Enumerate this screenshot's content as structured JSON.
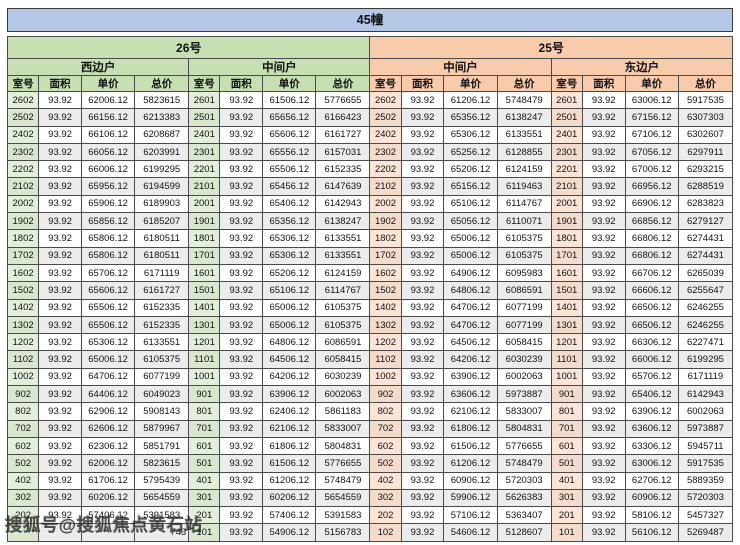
{
  "title": "45幢",
  "watermark": "搜狐号@搜狐焦点黄石站",
  "table": {
    "columns": [
      "室号",
      "面积",
      "单价",
      "总价"
    ],
    "col_widths_pct": [
      4.3,
      5.9,
      7.35,
      7.45
    ],
    "groups": [
      {
        "label": "26号",
        "theme": "green",
        "units": [
          "西边户",
          "中间户"
        ]
      },
      {
        "label": "25号",
        "theme": "orange",
        "units": [
          "中间户",
          "东边户"
        ]
      }
    ],
    "colors": {
      "title_bg": "#b4c7e7",
      "group_green": "#c6e0b4",
      "group_orange": "#f8cbad",
      "room_green": "#e2efda",
      "room_orange": "#fce4d6",
      "stripe": "#ececec",
      "border": "#4a4a4a"
    },
    "rows": [
      [
        "2602",
        "93.92",
        "62006.12",
        "5823615",
        "2601",
        "93.92",
        "61506.12",
        "5776655",
        "2602",
        "93.92",
        "61206.12",
        "5748479",
        "2601",
        "93.92",
        "63006.12",
        "5917535"
      ],
      [
        "2502",
        "93.92",
        "66156.12",
        "6213383",
        "2501",
        "93.92",
        "65656.12",
        "6166423",
        "2502",
        "93.92",
        "65356.12",
        "6138247",
        "2501",
        "93.92",
        "67156.12",
        "6307303"
      ],
      [
        "2402",
        "93.92",
        "66106.12",
        "6208687",
        "2401",
        "93.92",
        "65606.12",
        "6161727",
        "2402",
        "93.92",
        "65306.12",
        "6133551",
        "2401",
        "93.92",
        "67106.12",
        "6302607"
      ],
      [
        "2302",
        "93.92",
        "66056.12",
        "6203991",
        "2301",
        "93.92",
        "65556.12",
        "6157031",
        "2302",
        "93.92",
        "65256.12",
        "6128855",
        "2301",
        "93.92",
        "67056.12",
        "6297911"
      ],
      [
        "2202",
        "93.92",
        "66006.12",
        "6199295",
        "2201",
        "93.92",
        "65506.12",
        "6152335",
        "2202",
        "93.92",
        "65206.12",
        "6124159",
        "2201",
        "93.92",
        "67006.12",
        "6293215"
      ],
      [
        "2102",
        "93.92",
        "65956.12",
        "6194599",
        "2101",
        "93.92",
        "65456.12",
        "6147639",
        "2102",
        "93.92",
        "65156.12",
        "6119463",
        "2101",
        "93.92",
        "66956.12",
        "6288519"
      ],
      [
        "2002",
        "93.92",
        "65906.12",
        "6189903",
        "2001",
        "93.92",
        "65406.12",
        "6142943",
        "2002",
        "93.92",
        "65106.12",
        "6114767",
        "2001",
        "93.92",
        "66906.12",
        "6283823"
      ],
      [
        "1902",
        "93.92",
        "65856.12",
        "6185207",
        "1901",
        "93.92",
        "65356.12",
        "6138247",
        "1902",
        "93.92",
        "65056.12",
        "6110071",
        "1901",
        "93.92",
        "66856.12",
        "6279127"
      ],
      [
        "1802",
        "93.92",
        "65806.12",
        "6180511",
        "1801",
        "93.92",
        "65306.12",
        "6133551",
        "1802",
        "93.92",
        "65006.12",
        "6105375",
        "1801",
        "93.92",
        "66806.12",
        "6274431"
      ],
      [
        "1702",
        "93.92",
        "65806.12",
        "6180511",
        "1701",
        "93.92",
        "65306.12",
        "6133551",
        "1702",
        "93.92",
        "65006.12",
        "6105375",
        "1701",
        "93.92",
        "66806.12",
        "6274431"
      ],
      [
        "1602",
        "93.92",
        "65706.12",
        "6171119",
        "1601",
        "93.92",
        "65206.12",
        "6124159",
        "1602",
        "93.92",
        "64906.12",
        "6095983",
        "1601",
        "93.92",
        "66706.12",
        "6265039"
      ],
      [
        "1502",
        "93.92",
        "65606.12",
        "6161727",
        "1501",
        "93.92",
        "65106.12",
        "6114767",
        "1502",
        "93.92",
        "64806.12",
        "6086591",
        "1501",
        "93.92",
        "66606.12",
        "6255647"
      ],
      [
        "1402",
        "93.92",
        "65506.12",
        "6152335",
        "1401",
        "93.92",
        "65006.12",
        "6105375",
        "1402",
        "93.92",
        "64706.12",
        "6077199",
        "1401",
        "93.92",
        "66506.12",
        "6246255"
      ],
      [
        "1302",
        "93.92",
        "65506.12",
        "6152335",
        "1301",
        "93.92",
        "65006.12",
        "6105375",
        "1302",
        "93.92",
        "64706.12",
        "6077199",
        "1301",
        "93.92",
        "66506.12",
        "6246255"
      ],
      [
        "1202",
        "93.92",
        "65306.12",
        "6133551",
        "1201",
        "93.92",
        "64806.12",
        "6086591",
        "1202",
        "93.92",
        "64506.12",
        "6058415",
        "1201",
        "93.92",
        "66306.12",
        "6227471"
      ],
      [
        "1102",
        "93.92",
        "65006.12",
        "6105375",
        "1101",
        "93.92",
        "64506.12",
        "6058415",
        "1102",
        "93.92",
        "64206.12",
        "6030239",
        "1101",
        "93.92",
        "66006.12",
        "6199295"
      ],
      [
        "1002",
        "93.92",
        "64706.12",
        "6077199",
        "1001",
        "93.92",
        "64206.12",
        "6030239",
        "1002",
        "93.92",
        "63906.12",
        "6002063",
        "1001",
        "93.92",
        "65706.12",
        "6171119"
      ],
      [
        "902",
        "93.92",
        "64406.12",
        "6049023",
        "901",
        "93.92",
        "63906.12",
        "6002063",
        "902",
        "93.92",
        "63606.12",
        "5973887",
        "901",
        "93.92",
        "65406.12",
        "6142943"
      ],
      [
        "802",
        "93.92",
        "62906.12",
        "5908143",
        "801",
        "93.92",
        "62406.12",
        "5861183",
        "802",
        "93.92",
        "62106.12",
        "5833007",
        "801",
        "93.92",
        "63906.12",
        "6002063"
      ],
      [
        "702",
        "93.92",
        "62606.12",
        "5879967",
        "701",
        "93.92",
        "62106.12",
        "5833007",
        "702",
        "93.92",
        "61806.12",
        "5804831",
        "701",
        "93.92",
        "63606.12",
        "5973887"
      ],
      [
        "602",
        "93.92",
        "62306.12",
        "5851791",
        "601",
        "93.92",
        "61806.12",
        "5804831",
        "602",
        "93.92",
        "61506.12",
        "5776655",
        "601",
        "93.92",
        "63306.12",
        "5945711"
      ],
      [
        "502",
        "93.92",
        "62006.12",
        "5823615",
        "501",
        "93.92",
        "61506.12",
        "5776655",
        "502",
        "93.92",
        "61206.12",
        "5748479",
        "501",
        "93.92",
        "63006.12",
        "5917535"
      ],
      [
        "402",
        "93.92",
        "61706.12",
        "5795439",
        "401",
        "93.92",
        "61206.12",
        "5748479",
        "402",
        "93.92",
        "60906.12",
        "5720303",
        "401",
        "93.92",
        "62706.12",
        "5889359"
      ],
      [
        "302",
        "93.92",
        "60206.12",
        "5654559",
        "301",
        "93.92",
        "60206.12",
        "5654559",
        "302",
        "93.92",
        "59906.12",
        "5626383",
        "301",
        "93.92",
        "60906.12",
        "5720303"
      ],
      [
        "202",
        "93.92",
        "57406.12",
        "5391583",
        "201",
        "93.92",
        "57406.12",
        "5391583",
        "202",
        "93.92",
        "57106.12",
        "5363407",
        "201",
        "93.92",
        "58106.12",
        "5457327"
      ],
      [
        "",
        "",
        "",
        "743",
        "101",
        "93.92",
        "54906.12",
        "5156783",
        "102",
        "93.92",
        "54606.12",
        "5128607",
        "101",
        "93.92",
        "56106.12",
        "5269487"
      ]
    ]
  }
}
